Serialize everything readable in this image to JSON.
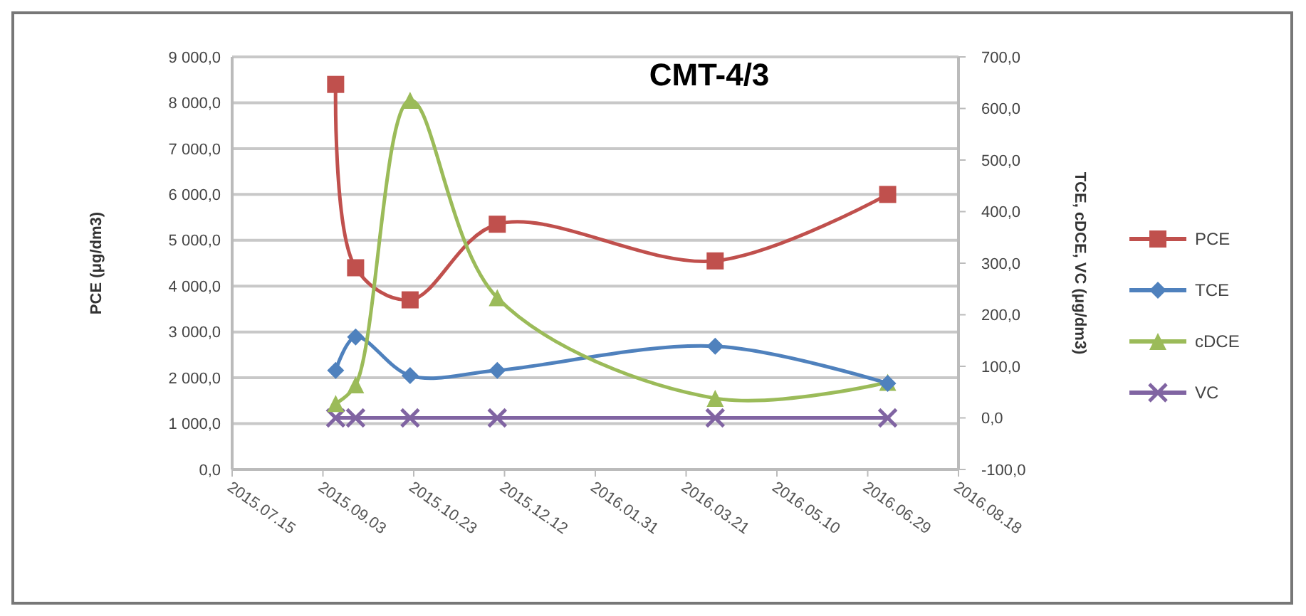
{
  "chart_data": {
    "type": "line",
    "title": "CMT-4/3",
    "ylabel": "PCE (μg/dm3)",
    "y2label": "TCE, cDCE, VC (μg/dm3)",
    "x": [
      "2015-09-10",
      "2015-09-21",
      "2015-10-21",
      "2015-12-08",
      "2016-04-06",
      "2016-07-10"
    ],
    "xlim": [
      "2015-07-15",
      "2016-08-18"
    ],
    "xticks": [
      {
        "value": "2015-07-15",
        "label": "2015.07.15"
      },
      {
        "value": "2015-09-03",
        "label": "2015.09.03"
      },
      {
        "value": "2015-10-23",
        "label": "2015.10.23"
      },
      {
        "value": "2015-12-12",
        "label": "2015.12.12"
      },
      {
        "value": "2016-01-31",
        "label": "2016.01.31"
      },
      {
        "value": "2016-03-21",
        "label": "2016.03.21"
      },
      {
        "value": "2016-05-10",
        "label": "2016.05.10"
      },
      {
        "value": "2016-06-29",
        "label": "2016.06.29"
      },
      {
        "value": "2016-08-18",
        "label": "2016.08.18"
      }
    ],
    "ylim": [
      0,
      9000
    ],
    "yticks": [
      {
        "value": 0,
        "label": "0,0"
      },
      {
        "value": 1000,
        "label": "1 000,0"
      },
      {
        "value": 2000,
        "label": "2 000,0"
      },
      {
        "value": 3000,
        "label": "3 000,0"
      },
      {
        "value": 4000,
        "label": "4 000,0"
      },
      {
        "value": 5000,
        "label": "5 000,0"
      },
      {
        "value": 6000,
        "label": "6 000,0"
      },
      {
        "value": 7000,
        "label": "7 000,0"
      },
      {
        "value": 8000,
        "label": "8 000,0"
      },
      {
        "value": 9000,
        "label": "9 000,0"
      }
    ],
    "y2lim": [
      -100,
      700
    ],
    "y2ticks": [
      {
        "value": -100,
        "label": "-100,0"
      },
      {
        "value": 0,
        "label": "0,0"
      },
      {
        "value": 100,
        "label": "100,0"
      },
      {
        "value": 200,
        "label": "200,0"
      },
      {
        "value": 300,
        "label": "300,0"
      },
      {
        "value": 400,
        "label": "400,0"
      },
      {
        "value": 500,
        "label": "500,0"
      },
      {
        "value": 600,
        "label": "600,0"
      },
      {
        "value": 700,
        "label": "700,0"
      }
    ],
    "grid": "y",
    "legend": "right",
    "series": [
      {
        "name": "PCE",
        "color": "#c0504d",
        "marker": "square",
        "values": [
          8400,
          4400,
          3700,
          5350,
          4550,
          6000
        ]
      },
      {
        "name": "TCE",
        "color": "#4f81bd",
        "marker": "diamond",
        "axis": "y2",
        "values": [
          92,
          157,
          82,
          92,
          139,
          67
        ]
      },
      {
        "name": "cDCE",
        "color": "#9bbb59",
        "marker": "triangle",
        "axis": "y2",
        "values": [
          28,
          64,
          616,
          233,
          38,
          69
        ]
      },
      {
        "name": "VC",
        "color": "#8064a2",
        "marker": "cross",
        "axis": "y2",
        "values": [
          0,
          0,
          0,
          0,
          0,
          0
        ]
      }
    ]
  }
}
